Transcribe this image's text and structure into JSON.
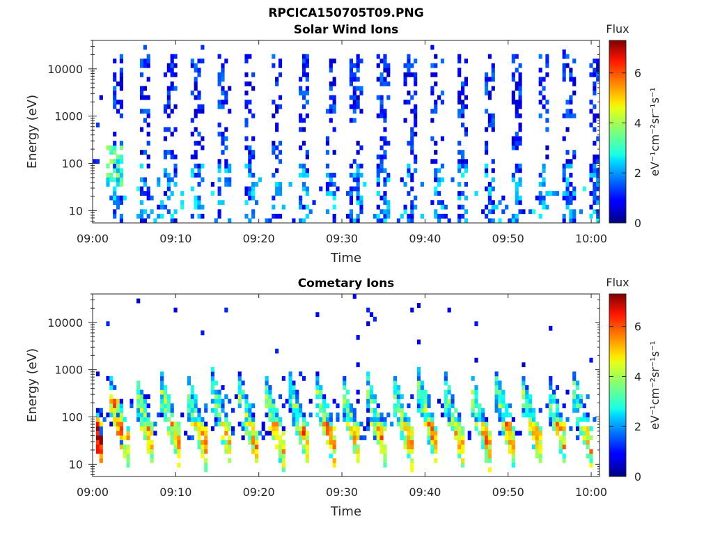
{
  "figure": {
    "title": "RPCICA150705T09.PNG"
  },
  "colorbar": {
    "title": "Flux",
    "label": "eV⁻¹cm⁻²sr⁻¹s⁻¹",
    "ticks": [
      "0",
      "2",
      "4",
      "6"
    ],
    "range": [
      0,
      7.3
    ],
    "colormap": "jet"
  },
  "chart_data": [
    {
      "type": "heatmap",
      "title": "Solar Wind Ions",
      "xlabel": "Time",
      "ylabel": "Energy (eV)",
      "x_ticks": [
        "09:00",
        "09:10",
        "09:20",
        "09:30",
        "09:40",
        "09:50",
        "10:00"
      ],
      "x_range": [
        "09:00",
        "10:01"
      ],
      "y_scale": "log",
      "y_ticks": [
        "10",
        "100",
        "1000",
        "10000"
      ],
      "y_range": [
        5.5,
        40000
      ],
      "bursts": {
        "count": 18,
        "first": "09:03",
        "period_minutes": 3.2,
        "energy_range_eV": [
          5.5,
          20000
        ],
        "typical_flux": [
          0.5,
          2.5
        ]
      }
    },
    {
      "type": "heatmap",
      "title": "Cometary Ions",
      "xlabel": "Time",
      "ylabel": "Energy (eV)",
      "x_ticks": [
        "09:00",
        "09:10",
        "09:20",
        "09:30",
        "09:40",
        "09:50",
        "10:00"
      ],
      "x_range": [
        "09:00",
        "10:01"
      ],
      "y_scale": "log",
      "y_ticks": [
        "10",
        "100",
        "1000",
        "10000"
      ],
      "y_range": [
        5.5,
        40000
      ],
      "bursts": {
        "count": 20,
        "first": "09:02",
        "period_minutes": 3.1,
        "energy_range_eV": [
          10,
          600
        ],
        "peak_flux": 7.2
      }
    }
  ]
}
